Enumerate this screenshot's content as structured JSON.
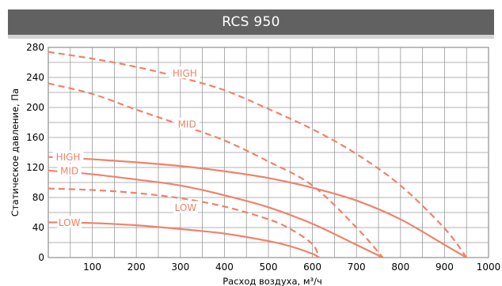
{
  "title": "RCS 950",
  "colors": {
    "header_bg": "#616161",
    "header_shadow": "#d3d3d3",
    "curve": "#f0826a",
    "grid": "#9a9a9a"
  },
  "chart_data": {
    "type": "line",
    "title": "RCS 950",
    "xlabel": "Расход воздуха, м³/ч",
    "ylabel": "Статическое давление, Па",
    "xlim": [
      0,
      1000
    ],
    "ylim": [
      0,
      280
    ],
    "xticks": [
      100,
      200,
      300,
      400,
      500,
      600,
      700,
      800,
      900,
      1000
    ],
    "yticks": [
      0,
      40,
      80,
      120,
      160,
      200,
      240,
      280
    ],
    "grid": true,
    "legend": "none",
    "series": [
      {
        "name": "HIGH",
        "style": "solid",
        "x": [
          0,
          100,
          200,
          300,
          400,
          500,
          600,
          700,
          800,
          900,
          950
        ],
        "y": [
          134,
          131,
          127,
          122,
          115,
          106,
          93,
          76,
          51,
          17,
          0
        ],
        "label_at": [
          45,
          134
        ]
      },
      {
        "name": "MID",
        "style": "solid",
        "x": [
          0,
          100,
          200,
          300,
          400,
          500,
          600,
          700,
          760
        ],
        "y": [
          116,
          111,
          104,
          96,
          83,
          67,
          45,
          17,
          0
        ],
        "label_at": [
          48,
          116
        ]
      },
      {
        "name": "LOW",
        "style": "solid",
        "x": [
          0,
          100,
          200,
          300,
          400,
          500,
          550,
          600,
          615
        ],
        "y": [
          47,
          46,
          43,
          38,
          32,
          22,
          15,
          5,
          0
        ],
        "label_at": [
          48,
          47
        ]
      },
      {
        "name": "HIGH",
        "style": "dashed",
        "x": [
          0,
          100,
          200,
          300,
          400,
          500,
          600,
          700,
          800,
          900,
          950
        ],
        "y": [
          274,
          265,
          254,
          240,
          223,
          198,
          171,
          138,
          96,
          39,
          0
        ],
        "label_at": [
          310,
          246
        ]
      },
      {
        "name": "MID",
        "style": "dashed",
        "x": [
          0,
          100,
          200,
          300,
          400,
          500,
          600,
          700,
          760
        ],
        "y": [
          232,
          218,
          197,
          177,
          156,
          128,
          96,
          40,
          0
        ],
        "label_at": [
          315,
          178
        ]
      },
      {
        "name": "LOW",
        "style": "dashed",
        "x": [
          0,
          100,
          200,
          300,
          400,
          500,
          550,
          600,
          615
        ],
        "y": [
          92,
          90,
          86,
          79,
          68,
          51,
          38,
          18,
          0
        ],
        "label_at": [
          312,
          67
        ]
      }
    ]
  }
}
